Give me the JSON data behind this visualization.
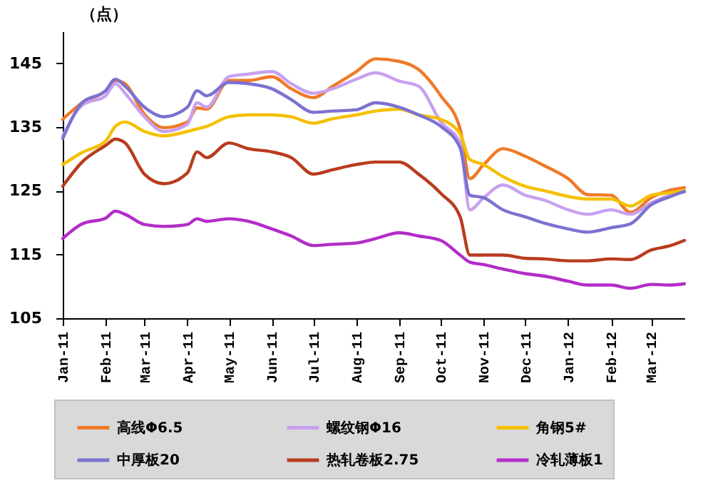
{
  "chart_data": {
    "type": "line",
    "ylabel": "（点）",
    "x": [
      "2011-01-01",
      "2011-01-15",
      "2011-02-01",
      "2011-02-08",
      "2011-02-15",
      "2011-03-01",
      "2011-03-15",
      "2011-04-01",
      "2011-04-08",
      "2011-04-15",
      "2011-05-01",
      "2011-05-15",
      "2011-06-01",
      "2011-06-15",
      "2011-07-01",
      "2011-07-15",
      "2011-08-01",
      "2011-08-15",
      "2011-09-01",
      "2011-09-15",
      "2011-10-01",
      "2011-10-15",
      "2011-10-22",
      "2011-11-01",
      "2011-11-15",
      "2011-12-01",
      "2011-12-15",
      "2012-01-01",
      "2012-01-15",
      "2012-02-01",
      "2012-02-15",
      "2012-03-01",
      "2012-03-15",
      "2012-03-25"
    ],
    "series": [
      {
        "name": "高线Φ6.5",
        "color": "#f07a28",
        "values": [
          136.2,
          138.8,
          140.7,
          142.3,
          141.8,
          137,
          134.9,
          135.8,
          138,
          137.8,
          142.3,
          142.3,
          142.9,
          141,
          139.6,
          141.4,
          143.7,
          145.7,
          145.3,
          144,
          139.9,
          134.7,
          126.9,
          129.1,
          131.6,
          130.4,
          128.9,
          126.9,
          124.4,
          124.3,
          121.6,
          123.9,
          125.1,
          125.5
        ]
      },
      {
        "name": "螺纹钢Φ16",
        "color": "#c9a0f0",
        "values": [
          133.6,
          138.4,
          139.9,
          141.8,
          140.3,
          136.6,
          134.3,
          135.4,
          138.8,
          138.1,
          142.9,
          143.3,
          143.7,
          141.8,
          140.3,
          141,
          142.5,
          143.5,
          142.2,
          141.4,
          135.8,
          132.5,
          122,
          123.9,
          125.9,
          124.3,
          123.5,
          122,
          121.3,
          122,
          121.3,
          123.1,
          124.3,
          124.8
        ]
      },
      {
        "name": "角钢5#",
        "color": "#f5c000",
        "values": [
          129.1,
          131,
          132.8,
          135.1,
          135.8,
          134.3,
          133.6,
          134.3,
          134.7,
          135.1,
          136.6,
          136.9,
          136.9,
          136.6,
          135.6,
          136.3,
          136.9,
          137.5,
          137.8,
          136.9,
          136.2,
          133.9,
          129.9,
          129.1,
          127.2,
          125.7,
          125,
          124.1,
          123.7,
          123.7,
          122.6,
          124.3,
          124.7,
          125
        ]
      },
      {
        "name": "中厚板20",
        "color": "#7b72d0",
        "values": [
          133.2,
          138.8,
          140.7,
          142.5,
          141.4,
          138.1,
          136.6,
          138.1,
          140.7,
          139.9,
          142,
          141.8,
          141,
          139.3,
          137.3,
          137.5,
          137.7,
          138.8,
          138.1,
          136.9,
          135.1,
          131.7,
          124.3,
          123.9,
          122,
          120.9,
          119.9,
          119,
          118.5,
          119.2,
          119.8,
          122.8,
          124.1,
          124.9
        ]
      },
      {
        "name": "热轧卷板2.75",
        "color": "#b83c1e",
        "values": [
          125.7,
          129.5,
          132.1,
          133.1,
          132.5,
          127.6,
          126.1,
          127.8,
          131.1,
          130.2,
          132.5,
          131.6,
          131.1,
          130.2,
          127.6,
          128.3,
          129.1,
          129.5,
          129.5,
          127.6,
          124.6,
          120.9,
          114.9,
          114.9,
          114.9,
          114.4,
          114.3,
          114,
          114,
          114.3,
          114.2,
          115.7,
          116.4,
          117.2
        ]
      },
      {
        "name": "冷轧薄板1",
        "color": "#b32cc8",
        "values": [
          117.5,
          119.8,
          120.7,
          121.8,
          121.3,
          119.7,
          119.4,
          119.7,
          120.6,
          120.2,
          120.6,
          120.2,
          119,
          117.9,
          116.4,
          116.6,
          116.8,
          117.5,
          118.4,
          117.9,
          117.2,
          114.9,
          113.8,
          113.4,
          112.7,
          112,
          111.6,
          110.8,
          110.2,
          110.2,
          109.7,
          110.3,
          110.2,
          110.4
        ]
      }
    ],
    "xlim": [
      "2011-01-01",
      "2012-03-25"
    ],
    "xticks": [
      {
        "value": "2011-01-01",
        "label": "Jan-11"
      },
      {
        "value": "2011-02-01",
        "label": "Feb-11"
      },
      {
        "value": "2011-03-01",
        "label": "Mar-11"
      },
      {
        "value": "2011-04-01",
        "label": "Apr-11"
      },
      {
        "value": "2011-05-01",
        "label": "May-11"
      },
      {
        "value": "2011-06-01",
        "label": "Jun-11"
      },
      {
        "value": "2011-07-01",
        "label": "Jul-11"
      },
      {
        "value": "2011-08-01",
        "label": "Aug-11"
      },
      {
        "value": "2011-09-01",
        "label": "Sep-11"
      },
      {
        "value": "2011-10-01",
        "label": "Oct-11"
      },
      {
        "value": "2011-11-01",
        "label": "Nov-11"
      },
      {
        "value": "2011-12-01",
        "label": "Dec-11"
      },
      {
        "value": "2012-01-01",
        "label": "Jan-12"
      },
      {
        "value": "2012-02-01",
        "label": "Feb-12"
      },
      {
        "value": "2012-03-01",
        "label": "Mar-12"
      }
    ],
    "ylim": [
      105,
      150
    ],
    "yticks": [
      105,
      115,
      125,
      135,
      145
    ],
    "grid": false,
    "legend": "bottom",
    "marker": "none",
    "line_style": "solid"
  }
}
